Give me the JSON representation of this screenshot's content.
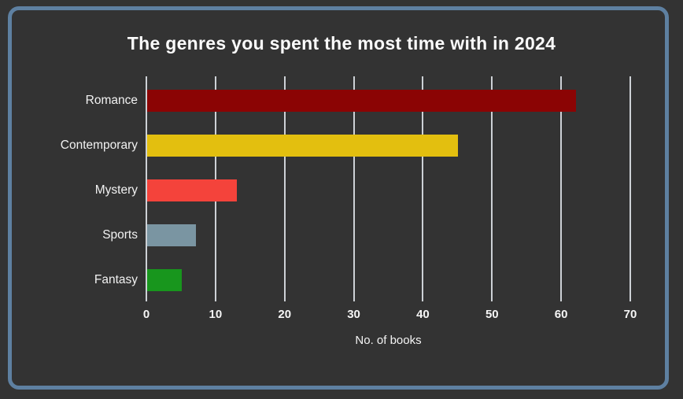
{
  "window": {
    "background_color": "#333333",
    "frame_border_color": "#5e80a1"
  },
  "chart_data": {
    "type": "bar",
    "orientation": "horizontal",
    "title": "The genres you spent the most time with in 2024",
    "xlabel": "No. of books",
    "categories": [
      "Romance",
      "Contemporary",
      "Mystery",
      "Sports",
      "Fantasy"
    ],
    "values": [
      62,
      45,
      13,
      7,
      5
    ],
    "bar_colors": [
      "#8b0404",
      "#e3bf0f",
      "#f4433b",
      "#7a95a2",
      "#18961d"
    ],
    "xlim": [
      0,
      70
    ],
    "xticks": [
      0,
      10,
      20,
      30,
      40,
      50,
      60,
      70
    ],
    "grid": true,
    "gridline_color": "#cdd1d6",
    "text_color": "#f5f5f5",
    "legend": "none"
  }
}
